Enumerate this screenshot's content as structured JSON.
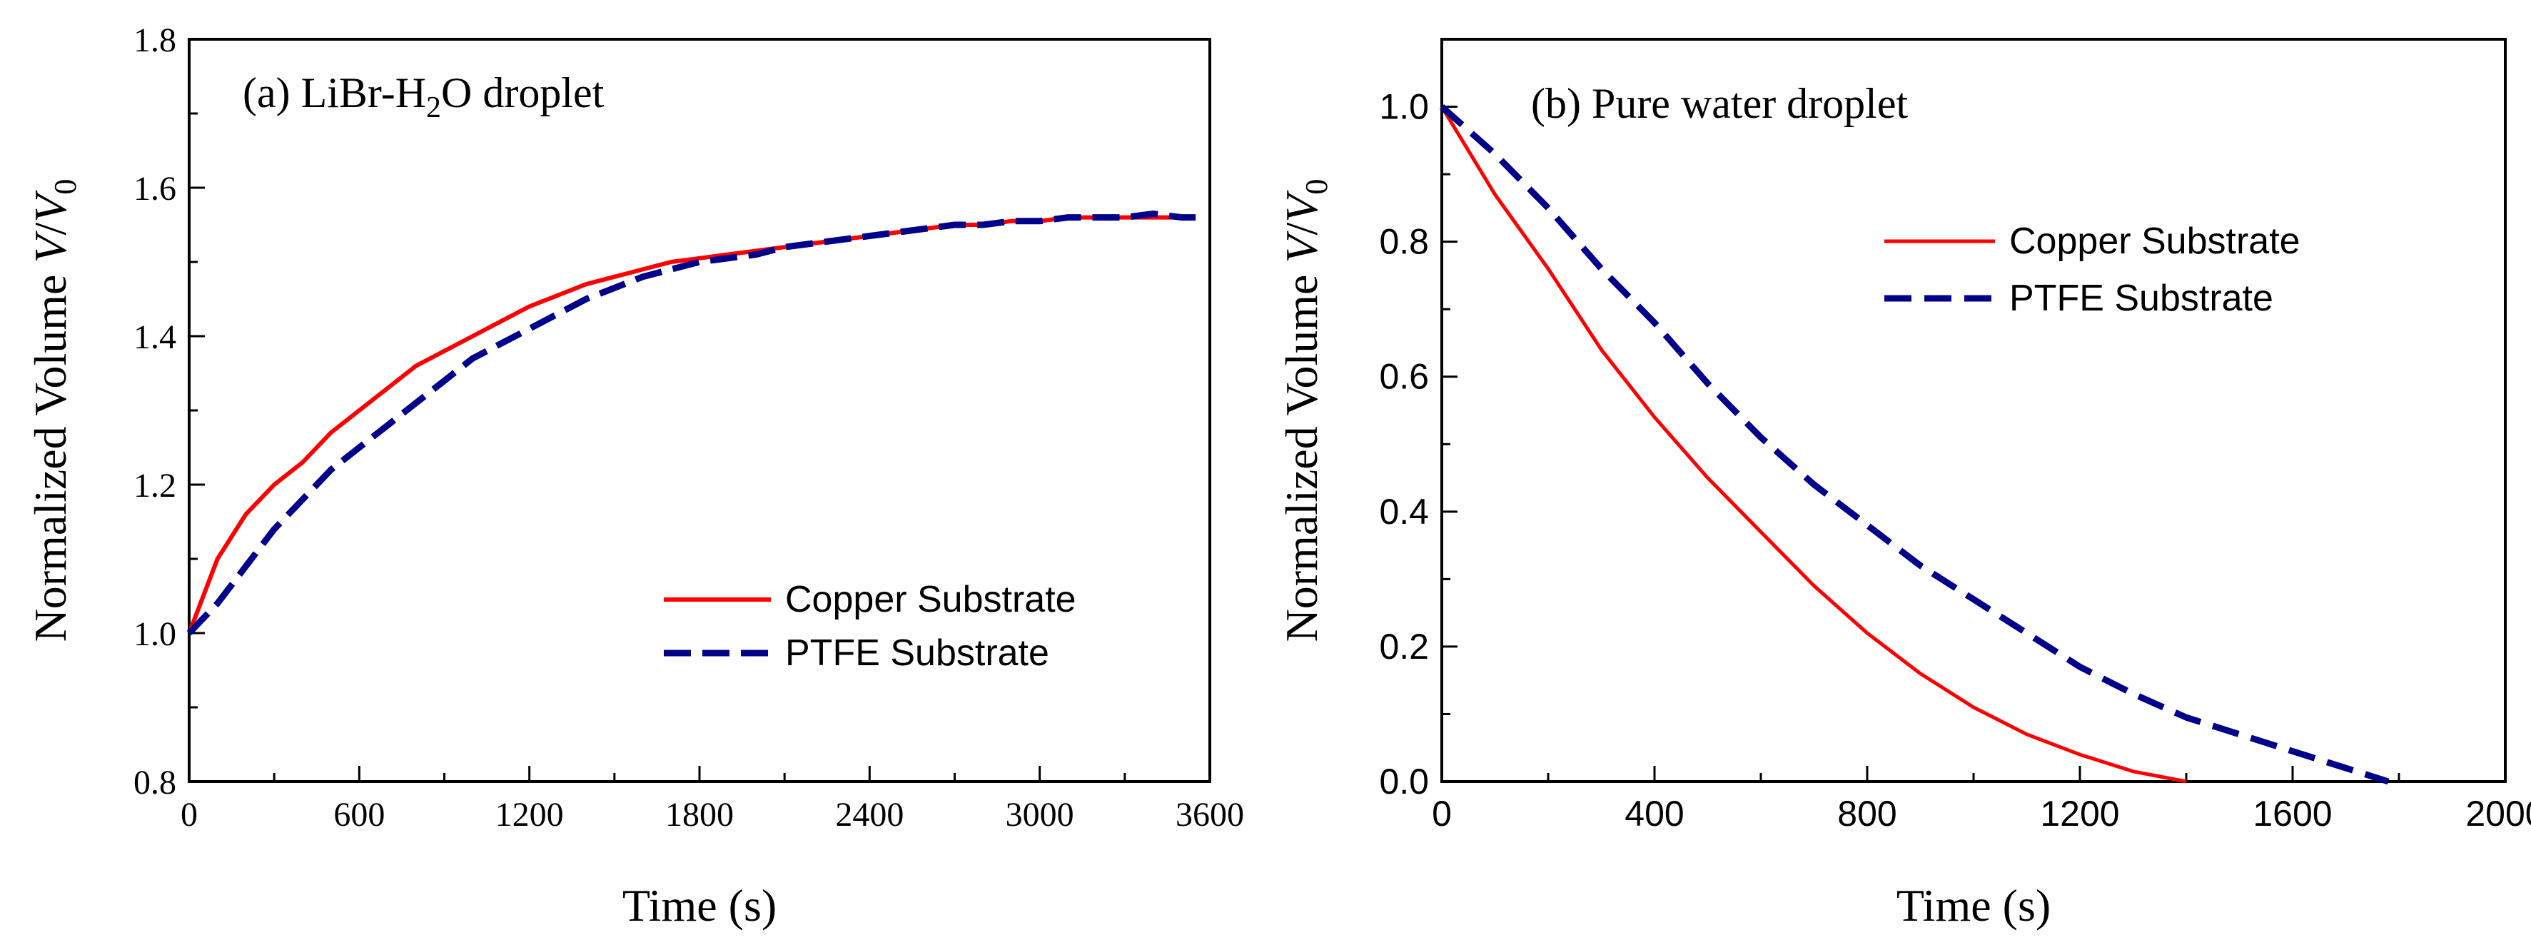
{
  "colors": {
    "copper": "#ff0000",
    "ptfe": "#00008b",
    "axis": "#000000"
  },
  "chart_data": [
    {
      "type": "line",
      "panel": "a",
      "title_prefix": "(a) LiBr-H",
      "title_sub": "2",
      "title_suffix": "O droplet",
      "xlabel": "Time (s)",
      "ylabel_prefix": "Normalized Volume ",
      "ylabel_var": "V",
      "ylabel_slash": "/",
      "ylabel_var2": "V",
      "ylabel_sub": "0",
      "xlim": [
        0,
        3600
      ],
      "ylim": [
        0.8,
        1.8
      ],
      "xticks": [
        "0",
        "600",
        "1200",
        "1800",
        "2400",
        "3000",
        "3600"
      ],
      "yticks": [
        "0.8",
        "1.0",
        "1.2",
        "1.4",
        "1.6",
        "1.8"
      ],
      "legend_position": "lower-right",
      "series": [
        {
          "name": "Copper Substrate",
          "style": "solid",
          "x": [
            0,
            100,
            200,
            300,
            400,
            500,
            600,
            700,
            800,
            900,
            1000,
            1100,
            1200,
            1300,
            1400,
            1500,
            1600,
            1700,
            1800,
            1900,
            2000,
            2100,
            2200,
            2300,
            2400,
            2500,
            2600,
            2700,
            2800,
            2900,
            3000,
            3100,
            3200,
            3300,
            3400,
            3500,
            3550
          ],
          "y": [
            1.0,
            1.1,
            1.16,
            1.2,
            1.23,
            1.27,
            1.3,
            1.33,
            1.36,
            1.38,
            1.4,
            1.42,
            1.44,
            1.455,
            1.47,
            1.48,
            1.49,
            1.5,
            1.505,
            1.51,
            1.515,
            1.52,
            1.525,
            1.53,
            1.535,
            1.54,
            1.545,
            1.55,
            1.55,
            1.555,
            1.555,
            1.56,
            1.56,
            1.56,
            1.56,
            1.56,
            1.56
          ]
        },
        {
          "name": "PTFE Substrate",
          "style": "dashed",
          "x": [
            0,
            100,
            200,
            300,
            400,
            500,
            600,
            700,
            800,
            900,
            1000,
            1100,
            1200,
            1300,
            1400,
            1500,
            1600,
            1700,
            1800,
            1900,
            2000,
            2100,
            2200,
            2300,
            2400,
            2500,
            2600,
            2700,
            2800,
            2900,
            3000,
            3100,
            3200,
            3300,
            3400,
            3500,
            3550
          ],
          "y": [
            1.0,
            1.04,
            1.09,
            1.14,
            1.18,
            1.22,
            1.25,
            1.28,
            1.31,
            1.34,
            1.37,
            1.39,
            1.41,
            1.43,
            1.45,
            1.465,
            1.48,
            1.49,
            1.5,
            1.505,
            1.51,
            1.52,
            1.525,
            1.53,
            1.535,
            1.54,
            1.545,
            1.55,
            1.55,
            1.555,
            1.555,
            1.56,
            1.56,
            1.56,
            1.565,
            1.56,
            1.56
          ]
        }
      ]
    },
    {
      "type": "line",
      "panel": "b",
      "title": "(b) Pure water droplet",
      "xlabel": "Time (s)",
      "ylabel_prefix": "Normalized Volume ",
      "ylabel_var": "V",
      "ylabel_slash": "/",
      "ylabel_var2": "V",
      "ylabel_sub": "0",
      "xlim": [
        0,
        2000
      ],
      "ylim": [
        0.0,
        1.1
      ],
      "xticks": [
        "0",
        "400",
        "800",
        "1200",
        "1600",
        "2000"
      ],
      "yticks": [
        "0.0",
        "0.2",
        "0.4",
        "0.6",
        "0.8",
        "1.0"
      ],
      "legend_position": "upper-right",
      "series": [
        {
          "name": "Copper Substrate",
          "style": "solid",
          "x": [
            0,
            100,
            200,
            300,
            400,
            500,
            600,
            700,
            800,
            900,
            1000,
            1100,
            1200,
            1300,
            1400
          ],
          "y": [
            1.0,
            0.87,
            0.76,
            0.64,
            0.54,
            0.45,
            0.37,
            0.29,
            0.22,
            0.16,
            0.11,
            0.07,
            0.04,
            0.015,
            0.0
          ]
        },
        {
          "name": "PTFE Substrate",
          "style": "dashed",
          "x": [
            0,
            100,
            200,
            300,
            400,
            500,
            600,
            700,
            800,
            900,
            1000,
            1100,
            1200,
            1300,
            1400,
            1500,
            1600,
            1700,
            1780
          ],
          "y": [
            1.0,
            0.93,
            0.85,
            0.76,
            0.68,
            0.59,
            0.51,
            0.44,
            0.38,
            0.32,
            0.27,
            0.22,
            0.17,
            0.13,
            0.095,
            0.07,
            0.045,
            0.02,
            0.0
          ]
        }
      ]
    }
  ]
}
